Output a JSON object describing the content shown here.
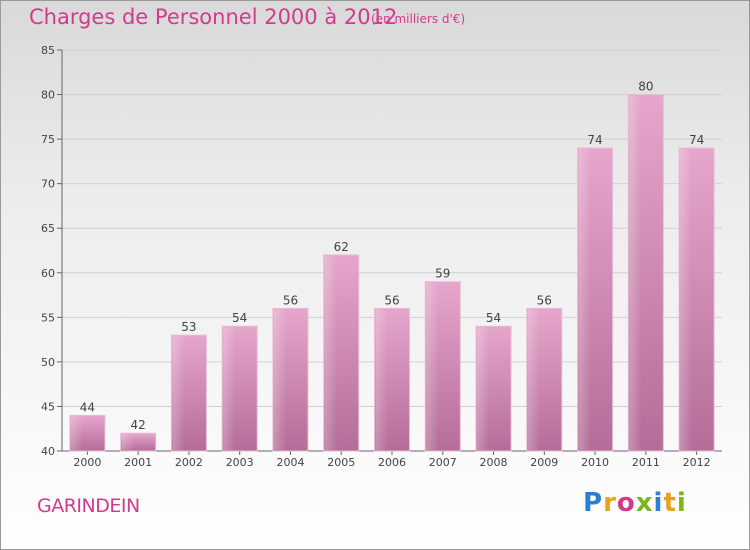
{
  "header": {
    "title": "Charges de Personnel 2000 à 2012",
    "unit": "(en milliers d'€)"
  },
  "footer": {
    "commune": "GARINDEIN",
    "logo": "Proxiti",
    "logo_colors": [
      "#2a7fd4",
      "#e8a21a",
      "#d23a8e",
      "#7ab51d",
      "#2a7fd4",
      "#e8a21a",
      "#7ab51d"
    ]
  },
  "chart_data": {
    "type": "bar",
    "title": "Charges de Personnel 2000 à 2012",
    "subtitle": "(en milliers d'€)",
    "categories": [
      "2000",
      "2001",
      "2002",
      "2003",
      "2004",
      "2005",
      "2006",
      "2007",
      "2008",
      "2009",
      "2010",
      "2011",
      "2012"
    ],
    "values": [
      44,
      42,
      53,
      54,
      56,
      62,
      56,
      59,
      54,
      56,
      74,
      80,
      74
    ],
    "ylim": [
      40,
      85
    ],
    "yticks": [
      40,
      45,
      50,
      55,
      60,
      65,
      70,
      75,
      80,
      85
    ],
    "grid": "horizontal",
    "bar_color": "#d98fb8"
  }
}
